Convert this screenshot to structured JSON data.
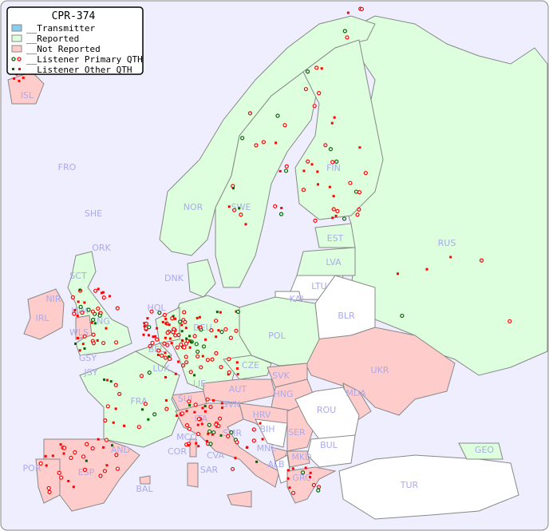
{
  "legend": {
    "title": "CPR-374",
    "items": [
      {
        "label": "__Transmitter",
        "color": "#88ccee"
      },
      {
        "label": "__Reported",
        "color": "#ddffdd"
      },
      {
        "label": "__Not Reported",
        "color": "#ffcccc"
      },
      {
        "label": "__Listener Primary QTH",
        "marker": "circle"
      },
      {
        "label": "__Listener Other QTH",
        "marker": "square"
      }
    ]
  },
  "colors": {
    "sea": "#eeeeff",
    "reported": "#ddffdd",
    "not_reported": "#ffcccc",
    "no_data": "#ffffff",
    "label": "#aaaaee",
    "marker_primary": "#ff0000",
    "marker_other_green": "#006600"
  },
  "countries": [
    "ISL",
    "FRO",
    "SHE",
    "ORK",
    "NOR",
    "SWE",
    "FIN",
    "EST",
    "RUS",
    "LVA",
    "LTU",
    "KAL",
    "BLR",
    "DNK",
    "SCT",
    "NIR",
    "IRL",
    "IOM",
    "ENG",
    "WLS",
    "HOL",
    "BEL",
    "DEU",
    "POL",
    "GSY",
    "JSY",
    "LUX",
    "CZE",
    "SVK",
    "UKR",
    "FRA",
    "LIE",
    "AUT",
    "HNG",
    "MDA",
    "SUI",
    "SVN",
    "HRV",
    "ROU",
    "ITA",
    "SMR",
    "BIH",
    "SER",
    "MCO",
    "COR",
    "CVA",
    "MNE",
    "BUL",
    "AND",
    "POR",
    "ESP",
    "BAL",
    "SAR",
    "ALB",
    "MKD",
    "GRC",
    "TUR",
    "GEO"
  ]
}
